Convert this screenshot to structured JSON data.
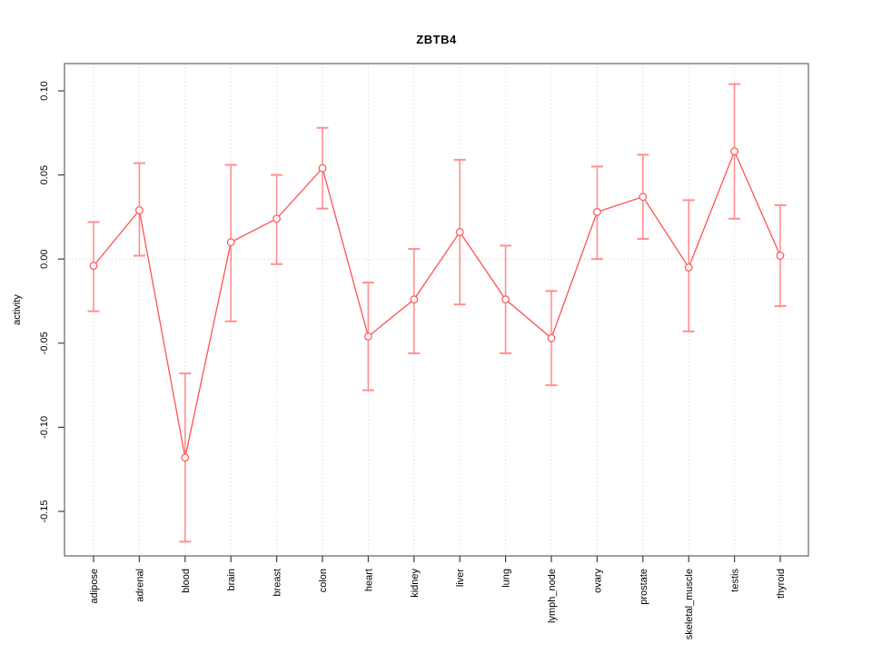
{
  "chart_data": {
    "type": "line",
    "title": "ZBTB4",
    "xlabel": "",
    "ylabel": "activity",
    "categories": [
      "adipose",
      "adrenal",
      "blood",
      "brain",
      "breast",
      "colon",
      "heart",
      "kidney",
      "liver",
      "lung",
      "lymph_node",
      "ovary",
      "prostate",
      "skeletal_muscle",
      "testis",
      "thyroid"
    ],
    "series": [
      {
        "means": [
          -0.004,
          0.029,
          -0.118,
          0.01,
          0.024,
          0.054,
          -0.046,
          -0.024,
          0.016,
          -0.024,
          -0.047,
          0.028,
          0.037,
          -0.005,
          0.064,
          0.002
        ],
        "upper": [
          0.022,
          0.057,
          -0.068,
          0.056,
          0.05,
          0.078,
          -0.014,
          0.006,
          0.059,
          0.008,
          -0.019,
          0.055,
          0.062,
          0.035,
          0.104,
          0.032
        ],
        "lower": [
          -0.031,
          0.002,
          -0.168,
          -0.037,
          -0.003,
          0.03,
          -0.078,
          -0.056,
          -0.027,
          -0.056,
          -0.075,
          0.0,
          0.012,
          -0.043,
          0.024,
          -0.028
        ]
      }
    ],
    "y_ticks": [
      {
        "label": "0.10",
        "value": 0.1
      },
      {
        "label": "0.05",
        "value": 0.05
      },
      {
        "label": "0.00",
        "value": 0.0
      },
      {
        "label": "-0.05",
        "value": -0.05
      },
      {
        "label": "-0.10",
        "value": -0.1
      },
      {
        "label": "-0.15",
        "value": -0.15
      }
    ],
    "ylim": [
      -0.177,
      0.116
    ],
    "grid": "dotted vertical gridline at each category; dotted horizontal line at 0.00",
    "legend": "none",
    "colors": {
      "line": "#ff5252",
      "point": "#ff5252",
      "error_bar": "#ff8f8f",
      "grid": "#d4d4d4",
      "frame": "#6e6e6e",
      "tick": "#404040",
      "text": "#000000",
      "background": "#ffffff"
    }
  }
}
